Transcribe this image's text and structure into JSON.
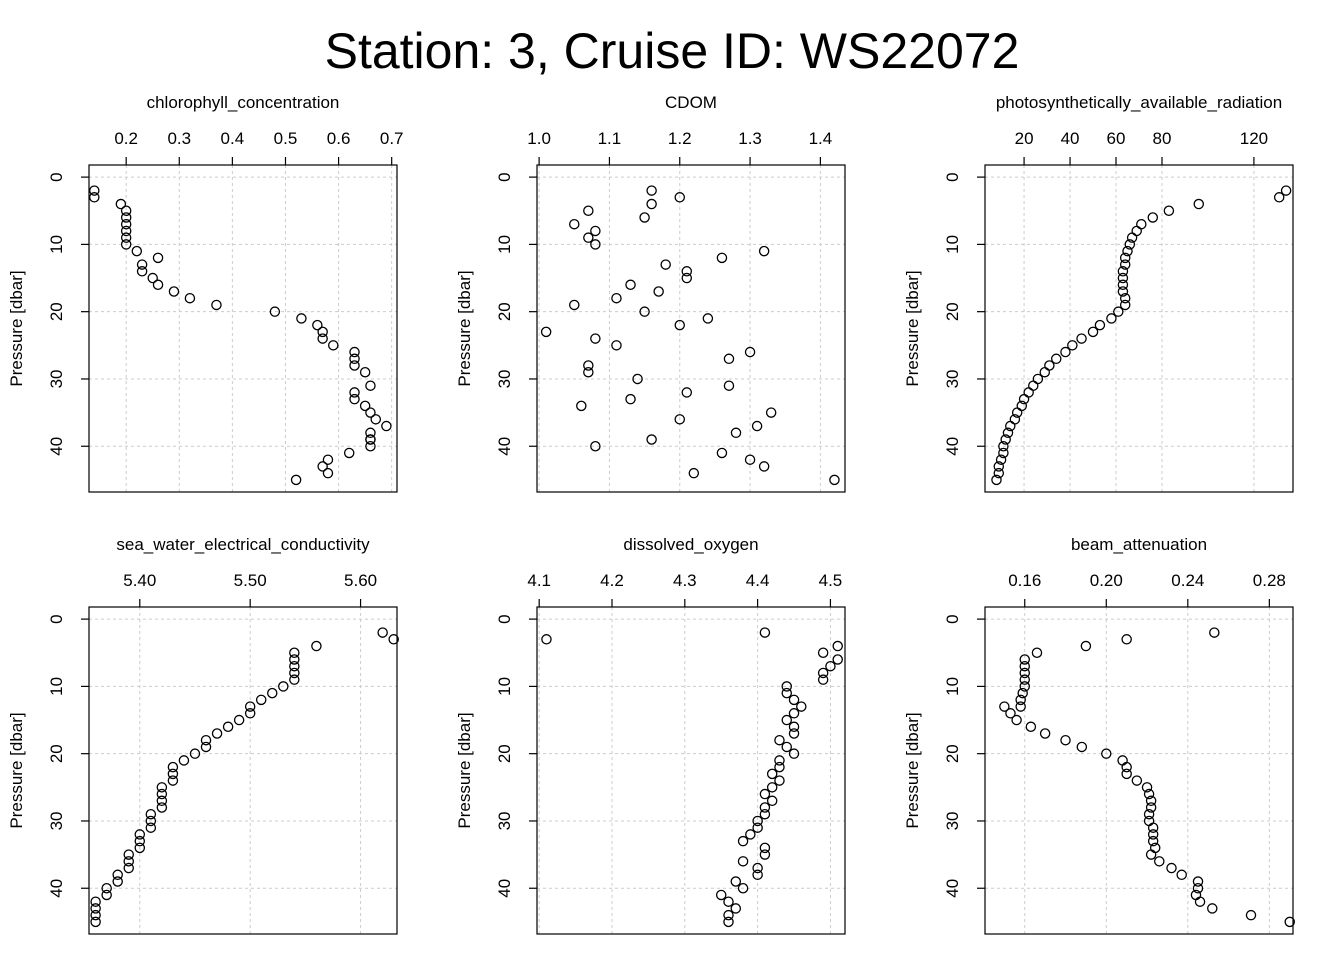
{
  "figure_title": "Station: 3, Cruise ID: WS22072",
  "chart_data": [
    {
      "type": "scatter",
      "title": "chlorophyll_concentration",
      "xlabel": "",
      "ylabel": "Pressure [dbar]",
      "xlim": [
        0.13,
        0.71
      ],
      "ylim": [
        46.8,
        -1.8
      ],
      "y_reversed": true,
      "xticks": [
        0.2,
        0.3,
        0.4,
        0.5,
        0.6,
        0.7
      ],
      "xtick_labels": [
        "0.2",
        "0.3",
        "0.4",
        "0.5",
        "0.6",
        "0.7"
      ],
      "yticks": [
        0,
        10,
        20,
        30,
        40
      ],
      "ytick_labels": [
        "0",
        "10",
        "20",
        "30",
        "40"
      ],
      "grid": true,
      "marker": "open-circle",
      "x": [
        0.14,
        0.14,
        0.19,
        0.2,
        0.2,
        0.2,
        0.2,
        0.2,
        0.2,
        0.22,
        0.26,
        0.23,
        0.23,
        0.25,
        0.26,
        0.29,
        0.32,
        0.37,
        0.48,
        0.53,
        0.56,
        0.57,
        0.57,
        0.59,
        0.63,
        0.63,
        0.63,
        0.65,
        0.66,
        0.63,
        0.63,
        0.65,
        0.66,
        0.67,
        0.66,
        0.69,
        0.66,
        0.66,
        0.66,
        0.62,
        0.58,
        0.57,
        0.58,
        0.52
      ],
      "y": [
        2,
        3,
        4,
        5,
        6,
        7,
        8,
        9,
        10,
        11,
        12,
        13,
        14,
        15,
        16,
        17,
        18,
        19,
        20,
        21,
        22,
        23,
        24,
        25,
        26,
        27,
        28,
        29,
        31,
        32,
        33,
        34,
        35,
        36,
        38,
        37,
        39,
        40,
        39,
        41,
        42,
        43,
        44,
        45
      ]
    },
    {
      "type": "scatter",
      "title": "CDOM",
      "xlabel": "",
      "ylabel": "Pressure [dbar]",
      "xlim": [
        0.997,
        1.435
      ],
      "ylim": [
        46.8,
        -1.8
      ],
      "y_reversed": true,
      "xticks": [
        1.0,
        1.1,
        1.2,
        1.3,
        1.4
      ],
      "xtick_labels": [
        "1.0",
        "1.1",
        "1.2",
        "1.3",
        "1.4"
      ],
      "yticks": [
        0,
        10,
        20,
        30,
        40
      ],
      "ytick_labels": [
        "0",
        "10",
        "20",
        "30",
        "40"
      ],
      "grid": true,
      "marker": "open-circle",
      "x": [
        1.16,
        1.2,
        1.16,
        1.07,
        1.15,
        1.05,
        1.08,
        1.07,
        1.08,
        1.32,
        1.26,
        1.18,
        1.21,
        1.21,
        1.13,
        1.17,
        1.11,
        1.05,
        1.15,
        1.24,
        1.2,
        1.01,
        1.08,
        1.11,
        1.3,
        1.27,
        1.07,
        1.07,
        1.14,
        1.27,
        1.21,
        1.13,
        1.06,
        1.33,
        1.2,
        1.31,
        1.28,
        1.16,
        1.08,
        1.26,
        1.3,
        1.32,
        1.22,
        1.42
      ],
      "y": [
        2,
        3,
        4,
        5,
        6,
        7,
        8,
        9,
        10,
        11,
        12,
        13,
        14,
        15,
        16,
        17,
        18,
        19,
        20,
        21,
        22,
        23,
        24,
        25,
        26,
        27,
        28,
        29,
        30,
        31,
        32,
        33,
        34,
        35,
        36,
        37,
        38,
        39,
        40,
        41,
        42,
        43,
        44,
        45
      ]
    },
    {
      "type": "scatter",
      "title": "photosynthetically_available_radiation",
      "xlabel": "",
      "ylabel": "Pressure [dbar]",
      "xlim": [
        3,
        137
      ],
      "ylim": [
        46.8,
        -1.8
      ],
      "y_reversed": true,
      "xticks": [
        20,
        40,
        60,
        80,
        120
      ],
      "xtick_labels": [
        "20",
        "40",
        "60",
        "80",
        "120"
      ],
      "yticks": [
        0,
        10,
        20,
        30,
        40
      ],
      "ytick_labels": [
        "0",
        "10",
        "20",
        "30",
        "40"
      ],
      "grid": true,
      "marker": "open-circle",
      "x": [
        134,
        131,
        96,
        83,
        76,
        71,
        69,
        67,
        66,
        65,
        64,
        64,
        63,
        63,
        63,
        63,
        64,
        64,
        61,
        58,
        53,
        50,
        45,
        41,
        38,
        34,
        31,
        29,
        26,
        24,
        22,
        20,
        19,
        17,
        16,
        14,
        13,
        12,
        11,
        11,
        10,
        9,
        9,
        8
      ],
      "y": [
        2,
        3,
        4,
        5,
        6,
        7,
        8,
        9,
        10,
        11,
        12,
        13,
        14,
        15,
        16,
        17,
        18,
        19,
        20,
        21,
        22,
        23,
        24,
        25,
        26,
        27,
        28,
        29,
        30,
        31,
        32,
        33,
        34,
        35,
        36,
        37,
        38,
        39,
        40,
        41,
        42,
        43,
        44,
        45
      ]
    },
    {
      "type": "scatter",
      "title": "sea_water_electrical_conductivity",
      "xlabel": "",
      "ylabel": "Pressure [dbar]",
      "xlim": [
        5.354,
        5.633
      ],
      "ylim": [
        46.8,
        -1.8
      ],
      "y_reversed": true,
      "xticks": [
        5.4,
        5.5,
        5.6
      ],
      "xtick_labels": [
        "5.40",
        "5.50",
        "5.60"
      ],
      "yticks": [
        0,
        10,
        20,
        30,
        40
      ],
      "ytick_labels": [
        "0",
        "10",
        "20",
        "30",
        "40"
      ],
      "grid": true,
      "marker": "open-circle",
      "x": [
        5.62,
        5.63,
        5.56,
        5.54,
        5.54,
        5.54,
        5.54,
        5.54,
        5.53,
        5.52,
        5.51,
        5.5,
        5.5,
        5.49,
        5.48,
        5.47,
        5.46,
        5.46,
        5.45,
        5.44,
        5.43,
        5.43,
        5.43,
        5.42,
        5.42,
        5.42,
        5.42,
        5.41,
        5.41,
        5.41,
        5.4,
        5.4,
        5.4,
        5.39,
        5.39,
        5.39,
        5.38,
        5.38,
        5.37,
        5.37,
        5.36,
        5.36,
        5.36,
        5.36
      ],
      "y": [
        2,
        3,
        4,
        5,
        6,
        7,
        8,
        9,
        10,
        11,
        12,
        13,
        14,
        15,
        16,
        17,
        18,
        19,
        20,
        21,
        22,
        23,
        24,
        25,
        26,
        27,
        28,
        29,
        30,
        31,
        32,
        33,
        34,
        35,
        36,
        37,
        38,
        39,
        40,
        41,
        42,
        43,
        44,
        45
      ]
    },
    {
      "type": "scatter",
      "title": "dissolved_oxygen",
      "xlabel": "",
      "ylabel": "Pressure [dbar]",
      "xlim": [
        4.097,
        4.52
      ],
      "ylim": [
        46.8,
        -1.8
      ],
      "y_reversed": true,
      "xticks": [
        4.1,
        4.2,
        4.3,
        4.4,
        4.5
      ],
      "xtick_labels": [
        "4.1",
        "4.2",
        "4.3",
        "4.4",
        "4.5"
      ],
      "yticks": [
        0,
        10,
        20,
        30,
        40
      ],
      "ytick_labels": [
        "0",
        "10",
        "20",
        "30",
        "40"
      ],
      "grid": true,
      "marker": "open-circle",
      "x": [
        4.41,
        4.11,
        4.51,
        4.49,
        4.51,
        4.5,
        4.49,
        4.49,
        4.44,
        4.44,
        4.45,
        4.46,
        4.45,
        4.44,
        4.45,
        4.45,
        4.43,
        4.44,
        4.45,
        4.43,
        4.43,
        4.42,
        4.43,
        4.42,
        4.41,
        4.42,
        4.41,
        4.41,
        4.4,
        4.4,
        4.39,
        4.38,
        4.41,
        4.41,
        4.38,
        4.4,
        4.4,
        4.37,
        4.38,
        4.35,
        4.36,
        4.37,
        4.36,
        4.36
      ],
      "y": [
        2,
        3,
        4,
        5,
        6,
        7,
        8,
        9,
        10,
        11,
        12,
        13,
        14,
        15,
        16,
        17,
        18,
        19,
        20,
        21,
        22,
        23,
        24,
        25,
        26,
        27,
        28,
        29,
        30,
        31,
        32,
        33,
        34,
        35,
        36,
        37,
        38,
        39,
        40,
        41,
        42,
        43,
        44,
        45
      ]
    },
    {
      "type": "scatter",
      "title": "beam_attenuation",
      "xlabel": "",
      "ylabel": "Pressure [dbar]",
      "xlim": [
        0.1405,
        0.2916
      ],
      "ylim": [
        46.8,
        -1.8
      ],
      "y_reversed": true,
      "xticks": [
        0.16,
        0.2,
        0.24,
        0.28
      ],
      "xtick_labels": [
        "0.16",
        "0.20",
        "0.24",
        "0.28"
      ],
      "yticks": [
        0,
        10,
        20,
        30,
        40
      ],
      "ytick_labels": [
        "0",
        "10",
        "20",
        "30",
        "40"
      ],
      "grid": true,
      "marker": "open-circle",
      "x": [
        0.253,
        0.21,
        0.19,
        0.166,
        0.16,
        0.16,
        0.16,
        0.16,
        0.16,
        0.159,
        0.158,
        0.158,
        0.15,
        0.153,
        0.156,
        0.163,
        0.17,
        0.18,
        0.188,
        0.2,
        0.208,
        0.21,
        0.21,
        0.215,
        0.22,
        0.221,
        0.222,
        0.222,
        0.221,
        0.221,
        0.223,
        0.223,
        0.223,
        0.224,
        0.222,
        0.226,
        0.232,
        0.237,
        0.245,
        0.245,
        0.244,
        0.246,
        0.252,
        0.271,
        0.29
      ],
      "y": [
        2,
        3,
        4,
        5,
        6,
        7,
        8,
        9,
        10,
        11,
        12,
        13,
        13,
        14,
        15,
        16,
        17,
        18,
        19,
        20,
        21,
        22,
        23,
        24,
        25,
        26,
        27,
        28,
        29,
        30,
        31,
        32,
        33,
        34,
        35,
        36,
        37,
        38,
        39,
        40,
        41,
        42,
        43,
        44,
        45
      ]
    }
  ]
}
